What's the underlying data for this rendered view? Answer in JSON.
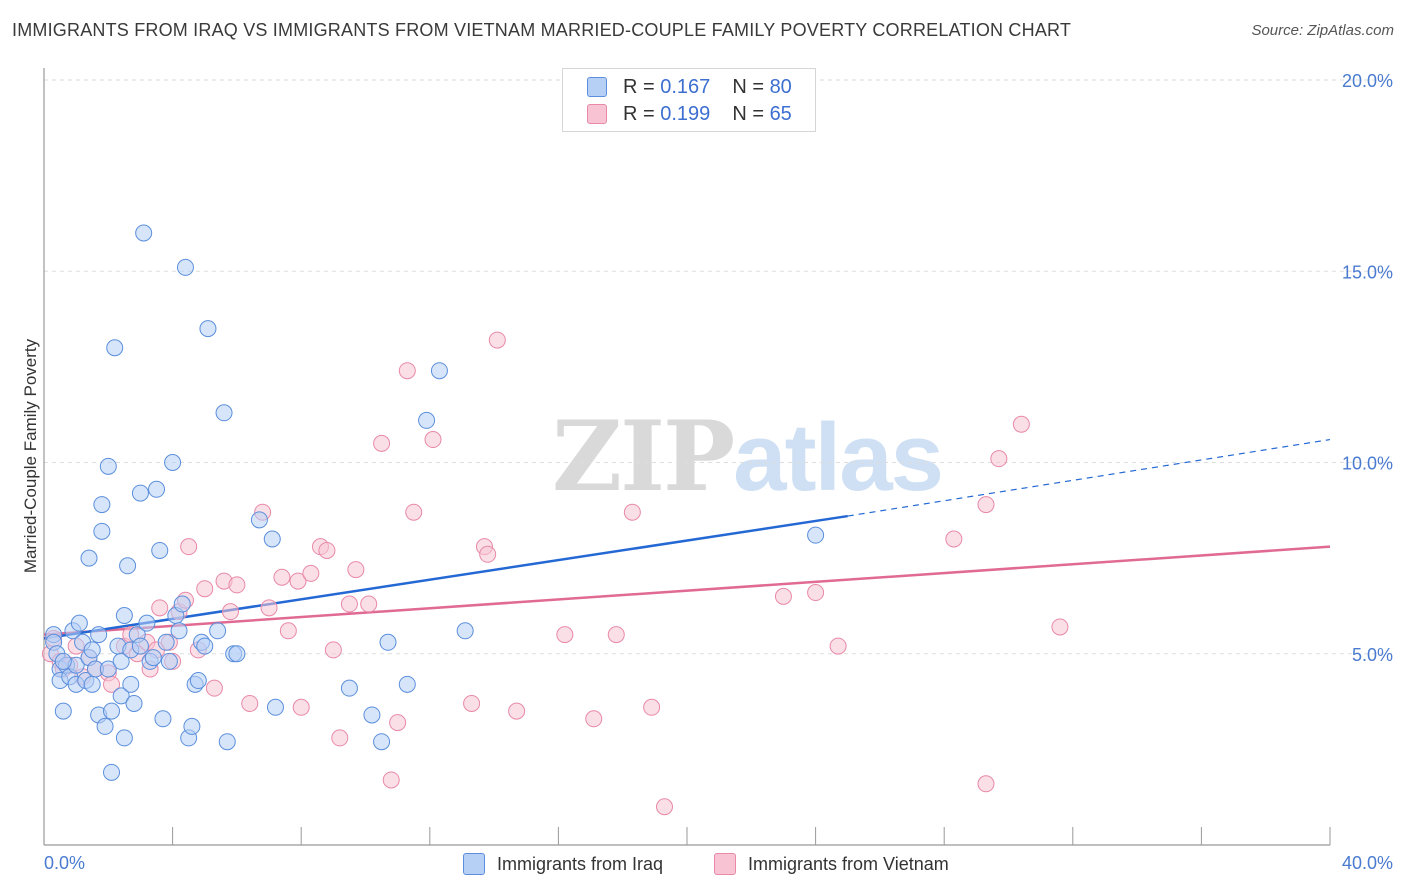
{
  "title": "IMMIGRANTS FROM IRAQ VS IMMIGRANTS FROM VIETNAM MARRIED-COUPLE FAMILY POVERTY CORRELATION CHART",
  "source": "Source: ZipAtlas.com",
  "watermark": {
    "zip": "ZIP",
    "atlas": "atlas"
  },
  "legend": {
    "rows": [
      {
        "r_label": "R =",
        "r_value": "0.167",
        "n_label": "N =",
        "n_value": "80"
      },
      {
        "r_label": "R =",
        "r_value": "0.199",
        "n_label": "N =",
        "n_value": "65"
      }
    ]
  },
  "colors": {
    "series1_fill": "#b6d0f5",
    "series1_stroke": "#5b8fdc",
    "series1_line": "#2468d4",
    "series2_fill": "#f8c4d4",
    "series2_stroke": "#e889a8",
    "series2_line": "#e06a93",
    "tick_text": "#4a7bd0",
    "grid": "#dddddd"
  },
  "chart_data": {
    "type": "scatter",
    "title": "IMMIGRANTS FROM IRAQ VS IMMIGRANTS FROM VIETNAM MARRIED-COUPLE FAMILY POVERTY CORRELATION CHART",
    "xlabel": "",
    "ylabel": "Married-Couple Family Poverty",
    "xlim": [
      0,
      40
    ],
    "ylim": [
      0,
      20
    ],
    "x_tick_labels": [
      "0.0%",
      "40.0%"
    ],
    "y_ticks": [
      5,
      10,
      15,
      20
    ],
    "y_tick_labels": [
      "5.0%",
      "10.0%",
      "15.0%",
      "20.0%"
    ],
    "series": [
      {
        "name": "Immigrants from Iraq",
        "r": 0.167,
        "n": 80,
        "trend": {
          "x0": 0,
          "y0": 5.4,
          "x1": 25,
          "y1": 8.6,
          "dash_x1": 40,
          "dash_y1": 10.6
        },
        "points": [
          [
            0.3,
            5.5
          ],
          [
            0.3,
            5.3
          ],
          [
            0.4,
            5.0
          ],
          [
            0.5,
            4.6
          ],
          [
            0.5,
            4.3
          ],
          [
            0.6,
            3.5
          ],
          [
            0.7,
            4.7
          ],
          [
            0.8,
            4.4
          ],
          [
            0.9,
            5.6
          ],
          [
            1.0,
            4.2
          ],
          [
            1.0,
            4.7
          ],
          [
            1.1,
            5.8
          ],
          [
            1.2,
            5.3
          ],
          [
            1.3,
            4.3
          ],
          [
            1.4,
            7.5
          ],
          [
            1.4,
            4.9
          ],
          [
            1.5,
            5.1
          ],
          [
            1.6,
            4.6
          ],
          [
            1.7,
            3.4
          ],
          [
            1.7,
            5.5
          ],
          [
            1.8,
            8.2
          ],
          [
            1.8,
            8.9
          ],
          [
            1.9,
            3.1
          ],
          [
            2.0,
            9.9
          ],
          [
            2.0,
            4.6
          ],
          [
            2.1,
            3.5
          ],
          [
            2.1,
            1.9
          ],
          [
            2.2,
            13.0
          ],
          [
            2.3,
            5.2
          ],
          [
            2.4,
            4.8
          ],
          [
            2.4,
            3.9
          ],
          [
            2.5,
            2.8
          ],
          [
            2.5,
            6.0
          ],
          [
            2.6,
            7.3
          ],
          [
            2.7,
            5.1
          ],
          [
            2.7,
            4.2
          ],
          [
            2.8,
            3.7
          ],
          [
            2.9,
            5.5
          ],
          [
            3.0,
            9.2
          ],
          [
            3.0,
            5.2
          ],
          [
            3.1,
            16.0
          ],
          [
            3.2,
            5.8
          ],
          [
            3.3,
            4.8
          ],
          [
            3.4,
            4.9
          ],
          [
            3.5,
            9.3
          ],
          [
            3.6,
            7.7
          ],
          [
            3.7,
            3.3
          ],
          [
            3.8,
            5.3
          ],
          [
            3.9,
            4.8
          ],
          [
            4.0,
            10.0
          ],
          [
            4.1,
            6.0
          ],
          [
            4.2,
            5.6
          ],
          [
            4.3,
            6.3
          ],
          [
            4.4,
            15.1
          ],
          [
            4.5,
            2.8
          ],
          [
            4.6,
            3.1
          ],
          [
            4.7,
            4.2
          ],
          [
            4.8,
            4.3
          ],
          [
            4.9,
            5.3
          ],
          [
            5.0,
            5.2
          ],
          [
            5.1,
            13.5
          ],
          [
            5.4,
            5.6
          ],
          [
            5.6,
            11.3
          ],
          [
            5.7,
            2.7
          ],
          [
            5.9,
            5.0
          ],
          [
            6.0,
            5.0
          ],
          [
            6.7,
            8.5
          ],
          [
            7.1,
            8.0
          ],
          [
            7.2,
            3.6
          ],
          [
            9.5,
            4.1
          ],
          [
            10.2,
            3.4
          ],
          [
            10.5,
            2.7
          ],
          [
            10.7,
            5.3
          ],
          [
            11.3,
            4.2
          ],
          [
            11.9,
            11.1
          ],
          [
            12.3,
            12.4
          ],
          [
            13.1,
            5.6
          ],
          [
            24.0,
            8.1
          ],
          [
            1.5,
            4.2
          ],
          [
            0.6,
            4.8
          ]
        ]
      },
      {
        "name": "Immigrants from Vietnam",
        "r": 0.199,
        "n": 65,
        "trend": {
          "x0": 0,
          "y0": 5.5,
          "x1": 40,
          "y1": 7.8
        },
        "points": [
          [
            0.2,
            5.0
          ],
          [
            0.3,
            5.4
          ],
          [
            0.5,
            4.8
          ],
          [
            0.6,
            4.6
          ],
          [
            0.8,
            4.7
          ],
          [
            1.0,
            5.2
          ],
          [
            1.2,
            4.4
          ],
          [
            1.4,
            4.9
          ],
          [
            1.6,
            4.6
          ],
          [
            2.0,
            4.5
          ],
          [
            2.1,
            4.2
          ],
          [
            2.5,
            5.2
          ],
          [
            2.7,
            5.5
          ],
          [
            2.9,
            5.0
          ],
          [
            3.2,
            5.3
          ],
          [
            3.3,
            4.6
          ],
          [
            3.5,
            5.1
          ],
          [
            3.6,
            6.2
          ],
          [
            3.9,
            5.3
          ],
          [
            4.0,
            4.8
          ],
          [
            4.2,
            6.1
          ],
          [
            4.4,
            6.4
          ],
          [
            4.5,
            7.8
          ],
          [
            4.8,
            5.1
          ],
          [
            5.0,
            6.7
          ],
          [
            5.3,
            4.1
          ],
          [
            5.6,
            6.9
          ],
          [
            5.8,
            6.1
          ],
          [
            6.0,
            6.8
          ],
          [
            6.4,
            3.7
          ],
          [
            6.8,
            8.7
          ],
          [
            7.0,
            6.2
          ],
          [
            7.4,
            7.0
          ],
          [
            7.6,
            5.6
          ],
          [
            7.9,
            6.9
          ],
          [
            8.0,
            3.6
          ],
          [
            8.3,
            7.1
          ],
          [
            8.6,
            7.8
          ],
          [
            8.8,
            7.7
          ],
          [
            9.0,
            5.1
          ],
          [
            9.2,
            2.8
          ],
          [
            9.5,
            6.3
          ],
          [
            9.7,
            7.2
          ],
          [
            10.1,
            6.3
          ],
          [
            10.5,
            10.5
          ],
          [
            10.8,
            1.7
          ],
          [
            11.0,
            3.2
          ],
          [
            11.3,
            12.4
          ],
          [
            11.5,
            8.7
          ],
          [
            12.1,
            10.6
          ],
          [
            13.3,
            3.7
          ],
          [
            13.7,
            7.8
          ],
          [
            13.8,
            7.6
          ],
          [
            14.1,
            13.2
          ],
          [
            14.7,
            3.5
          ],
          [
            16.2,
            5.5
          ],
          [
            17.1,
            3.3
          ],
          [
            17.8,
            5.5
          ],
          [
            18.3,
            8.7
          ],
          [
            18.9,
            3.6
          ],
          [
            19.3,
            1.0
          ],
          [
            23.0,
            6.5
          ],
          [
            24.0,
            6.6
          ],
          [
            24.7,
            5.2
          ],
          [
            28.3,
            8.0
          ]
        ]
      }
    ],
    "extra_points_series2": [
      [
        29.3,
        8.9
      ],
      [
        29.7,
        10.1
      ],
      [
        30.4,
        11.0
      ],
      [
        31.6,
        5.7
      ],
      [
        29.3,
        1.6
      ]
    ]
  }
}
